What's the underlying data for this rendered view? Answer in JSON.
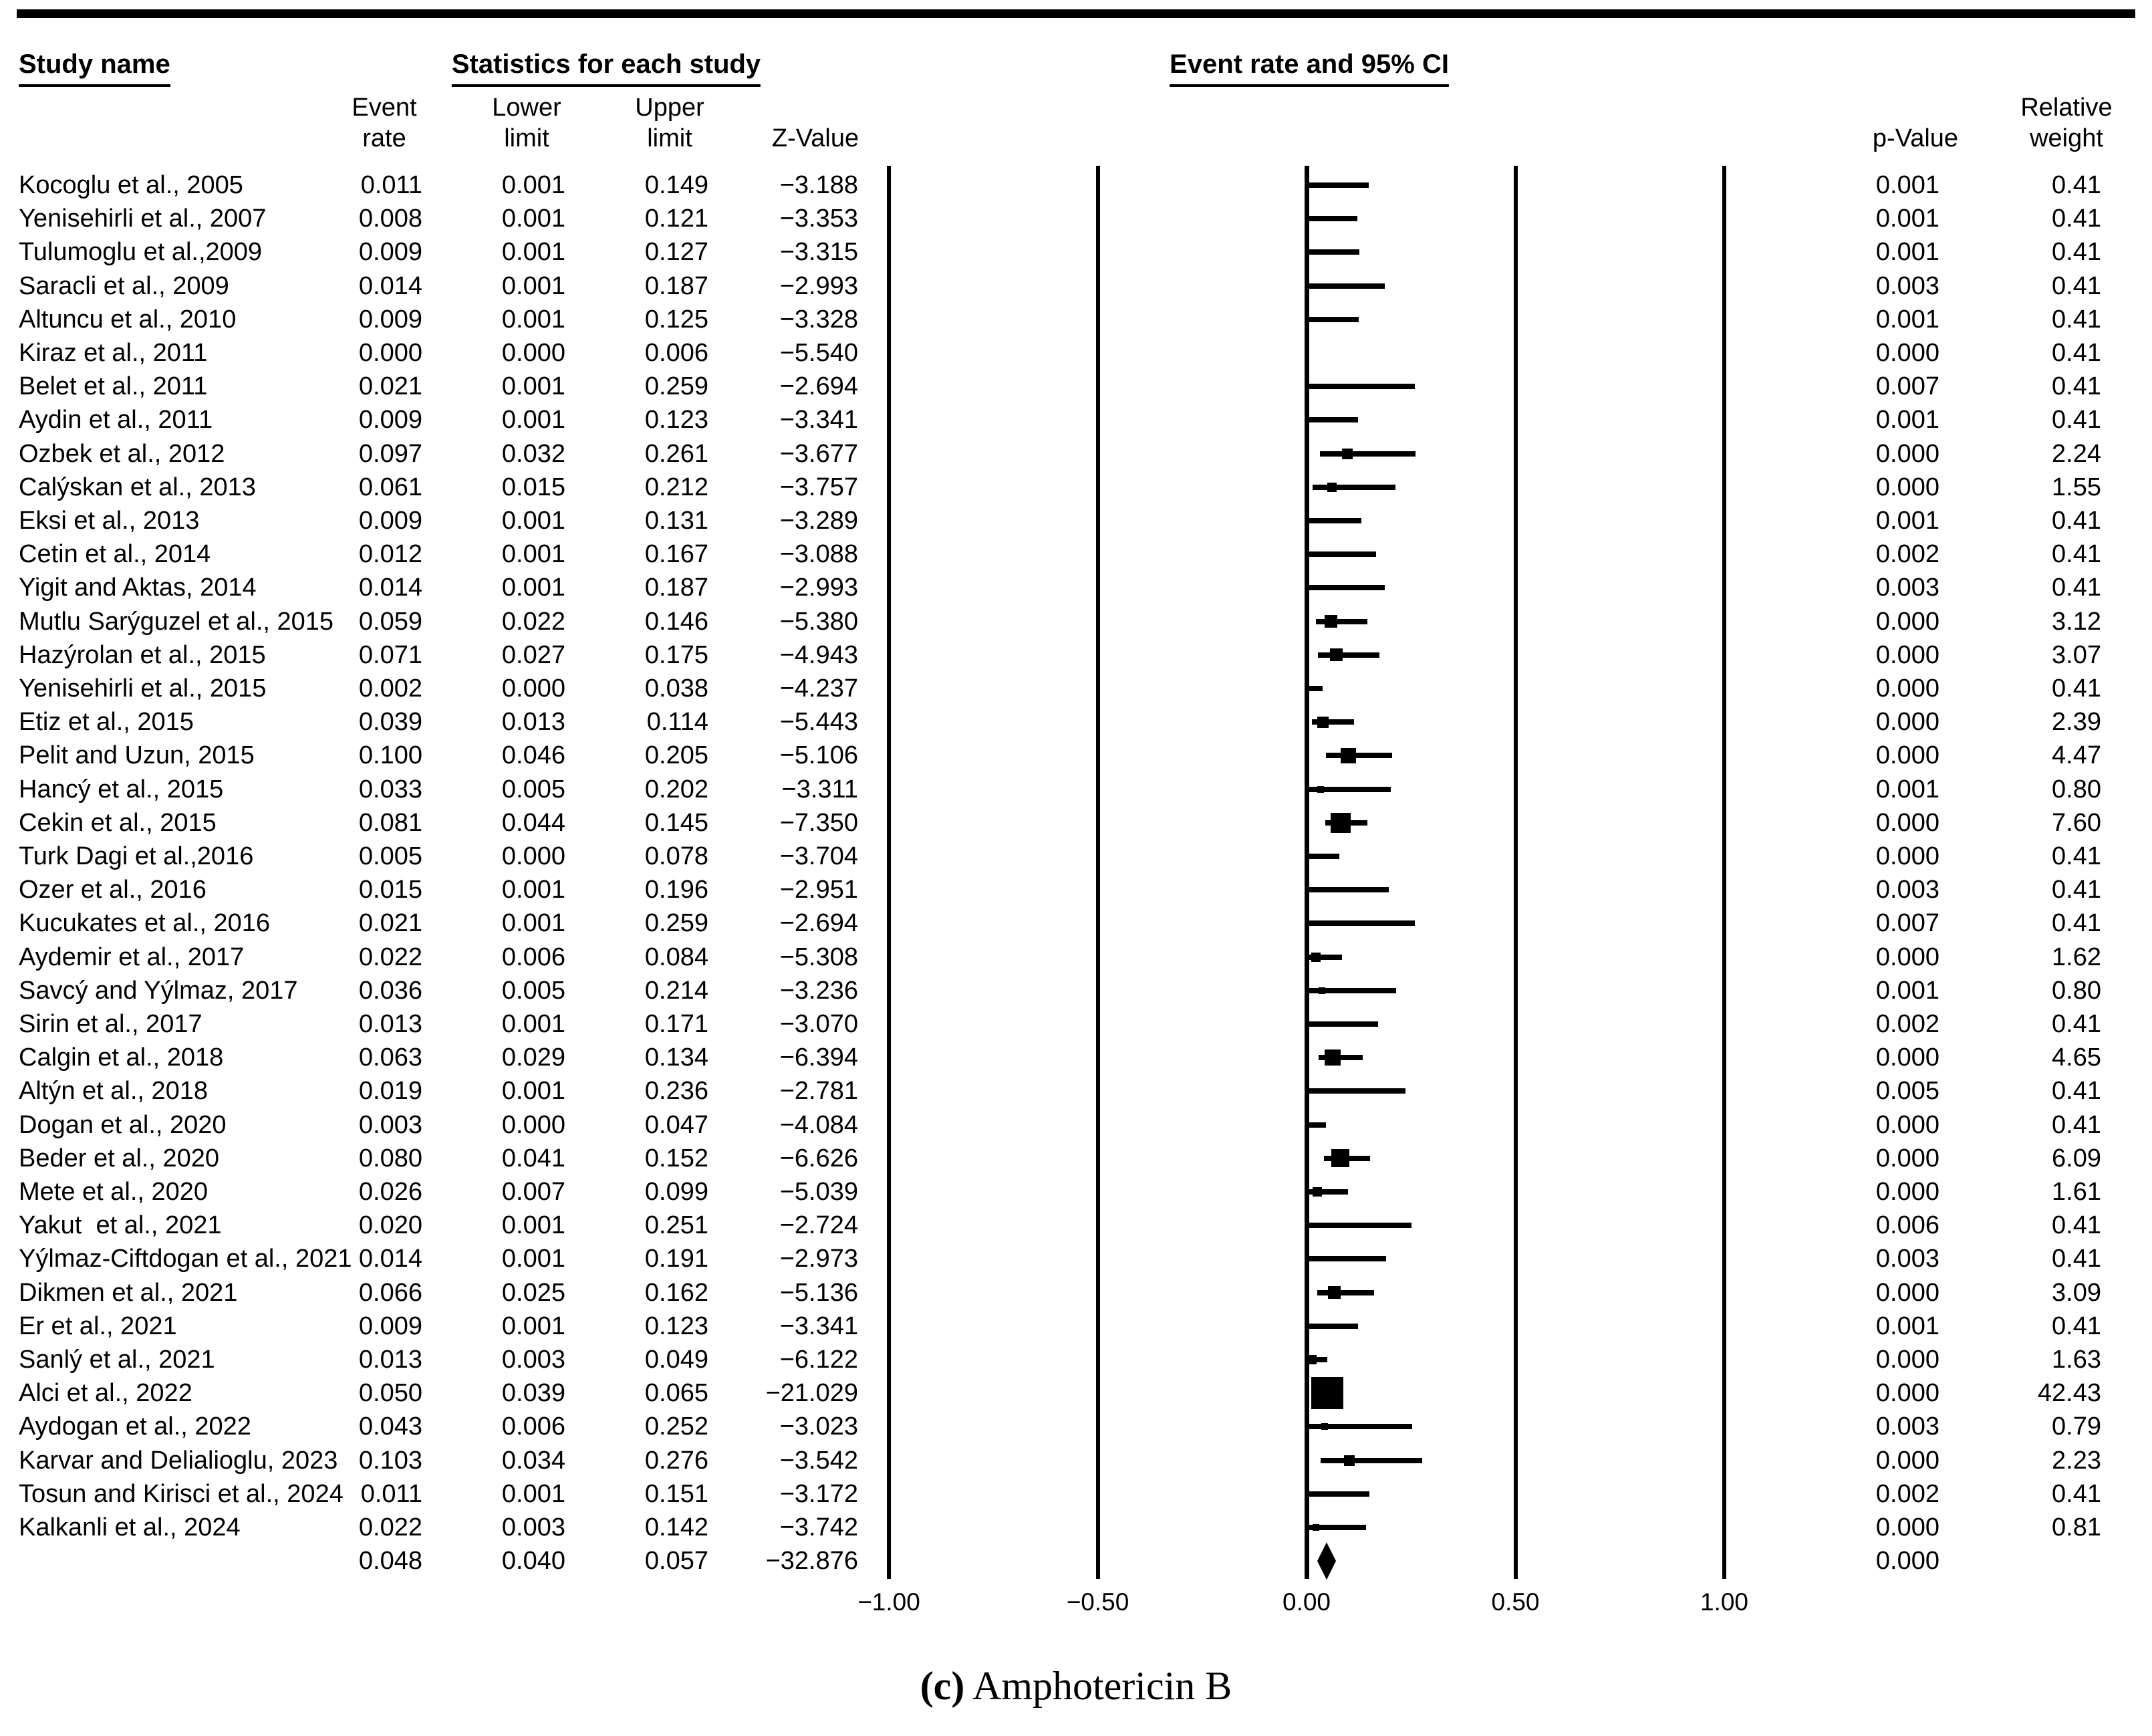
{
  "header": {
    "study_name": "Study name",
    "statistics": "Statistics for each study",
    "event_rate_ci": "Event rate and 95% CI"
  },
  "columns": {
    "event_rate": [
      "Event",
      "rate"
    ],
    "lower_limit": [
      "Lower",
      "limit"
    ],
    "upper_limit": [
      "Upper",
      "limit"
    ],
    "z_value": "Z-Value",
    "p_value": "p-Value",
    "relative_weight": [
      "Relative",
      "weight"
    ]
  },
  "caption": {
    "index": "(c)",
    "drug": "Amphotericin B"
  },
  "chart_data": {
    "type": "scatter",
    "subtype": "forest-plot-meta-analysis",
    "title": "(c) Amphotericin B",
    "xlabel": "",
    "xlim": [
      -1.0,
      1.0
    ],
    "x_tick_labels": [
      "−1.00",
      "−0.50",
      "0.00",
      "0.50",
      "1.00"
    ],
    "x_tick_values": [
      -1.0,
      -0.5,
      0.0,
      0.5,
      1.0
    ],
    "grid": "vertical reference lines at each x tick",
    "legend_position": "none",
    "studies": [
      {
        "name": "Kocoglu et al., 2005",
        "event_rate": "0.011",
        "lower_limit": "0.001",
        "upper_limit": "0.149",
        "z_value": "−3.188",
        "p_value": "0.001",
        "relative_weight": "0.41"
      },
      {
        "name": "Yenisehirli et al., 2007",
        "event_rate": "0.008",
        "lower_limit": "0.001",
        "upper_limit": "0.121",
        "z_value": "−3.353",
        "p_value": "0.001",
        "relative_weight": "0.41"
      },
      {
        "name": "Tulumoglu et al.,2009",
        "event_rate": "0.009",
        "lower_limit": "0.001",
        "upper_limit": "0.127",
        "z_value": "−3.315",
        "p_value": "0.001",
        "relative_weight": "0.41"
      },
      {
        "name": "Saracli et al., 2009",
        "event_rate": "0.014",
        "lower_limit": "0.001",
        "upper_limit": "0.187",
        "z_value": "−2.993",
        "p_value": "0.003",
        "relative_weight": "0.41"
      },
      {
        "name": "Altuncu et al., 2010",
        "event_rate": "0.009",
        "lower_limit": "0.001",
        "upper_limit": "0.125",
        "z_value": "−3.328",
        "p_value": "0.001",
        "relative_weight": "0.41"
      },
      {
        "name": "Kiraz et al., 2011",
        "event_rate": "0.000",
        "lower_limit": "0.000",
        "upper_limit": "0.006",
        "z_value": "−5.540",
        "p_value": "0.000",
        "relative_weight": "0.41"
      },
      {
        "name": "Belet et al., 2011",
        "event_rate": "0.021",
        "lower_limit": "0.001",
        "upper_limit": "0.259",
        "z_value": "−2.694",
        "p_value": "0.007",
        "relative_weight": "0.41"
      },
      {
        "name": "Aydin et al., 2011",
        "event_rate": "0.009",
        "lower_limit": "0.001",
        "upper_limit": "0.123",
        "z_value": "−3.341",
        "p_value": "0.001",
        "relative_weight": "0.41"
      },
      {
        "name": "Ozbek et al., 2012",
        "event_rate": "0.097",
        "lower_limit": "0.032",
        "upper_limit": "0.261",
        "z_value": "−3.677",
        "p_value": "0.000",
        "relative_weight": "2.24"
      },
      {
        "name": "Calýskan et al., 2013",
        "event_rate": "0.061",
        "lower_limit": "0.015",
        "upper_limit": "0.212",
        "z_value": "−3.757",
        "p_value": "0.000",
        "relative_weight": "1.55"
      },
      {
        "name": "Eksi et al., 2013",
        "event_rate": "0.009",
        "lower_limit": "0.001",
        "upper_limit": "0.131",
        "z_value": "−3.289",
        "p_value": "0.001",
        "relative_weight": "0.41"
      },
      {
        "name": "Cetin et al., 2014",
        "event_rate": "0.012",
        "lower_limit": "0.001",
        "upper_limit": "0.167",
        "z_value": "−3.088",
        "p_value": "0.002",
        "relative_weight": "0.41"
      },
      {
        "name": "Yigit and Aktas, 2014",
        "event_rate": "0.014",
        "lower_limit": "0.001",
        "upper_limit": "0.187",
        "z_value": "−2.993",
        "p_value": "0.003",
        "relative_weight": "0.41"
      },
      {
        "name": "Mutlu Sarýguzel et al., 2015",
        "event_rate": "0.059",
        "lower_limit": "0.022",
        "upper_limit": "0.146",
        "z_value": "−5.380",
        "p_value": "0.000",
        "relative_weight": "3.12"
      },
      {
        "name": "Hazýrolan et al., 2015",
        "event_rate": "0.071",
        "lower_limit": "0.027",
        "upper_limit": "0.175",
        "z_value": "−4.943",
        "p_value": "0.000",
        "relative_weight": "3.07"
      },
      {
        "name": "Yenisehirli et al., 2015",
        "event_rate": "0.002",
        "lower_limit": "0.000",
        "upper_limit": "0.038",
        "z_value": "−4.237",
        "p_value": "0.000",
        "relative_weight": "0.41"
      },
      {
        "name": "Etiz et al., 2015",
        "event_rate": "0.039",
        "lower_limit": "0.013",
        "upper_limit": "0.114",
        "z_value": "−5.443",
        "p_value": "0.000",
        "relative_weight": "2.39"
      },
      {
        "name": "Pelit and Uzun, 2015",
        "event_rate": "0.100",
        "lower_limit": "0.046",
        "upper_limit": "0.205",
        "z_value": "−5.106",
        "p_value": "0.000",
        "relative_weight": "4.47"
      },
      {
        "name": "Hancý et al., 2015",
        "event_rate": "0.033",
        "lower_limit": "0.005",
        "upper_limit": "0.202",
        "z_value": "−3.311",
        "p_value": "0.001",
        "relative_weight": "0.80"
      },
      {
        "name": "Cekin et al., 2015",
        "event_rate": "0.081",
        "lower_limit": "0.044",
        "upper_limit": "0.145",
        "z_value": "−7.350",
        "p_value": "0.000",
        "relative_weight": "7.60"
      },
      {
        "name": "Turk Dagi et al.,2016",
        "event_rate": "0.005",
        "lower_limit": "0.000",
        "upper_limit": "0.078",
        "z_value": "−3.704",
        "p_value": "0.000",
        "relative_weight": "0.41"
      },
      {
        "name": "Ozer et al., 2016",
        "event_rate": "0.015",
        "lower_limit": "0.001",
        "upper_limit": "0.196",
        "z_value": "−2.951",
        "p_value": "0.003",
        "relative_weight": "0.41"
      },
      {
        "name": "Kucukates et al., 2016",
        "event_rate": "0.021",
        "lower_limit": "0.001",
        "upper_limit": "0.259",
        "z_value": "−2.694",
        "p_value": "0.007",
        "relative_weight": "0.41"
      },
      {
        "name": "Aydemir et al., 2017",
        "event_rate": "0.022",
        "lower_limit": "0.006",
        "upper_limit": "0.084",
        "z_value": "−5.308",
        "p_value": "0.000",
        "relative_weight": "1.62"
      },
      {
        "name": "Savcý and Yýlmaz, 2017",
        "event_rate": "0.036",
        "lower_limit": "0.005",
        "upper_limit": "0.214",
        "z_value": "−3.236",
        "p_value": "0.001",
        "relative_weight": "0.80"
      },
      {
        "name": "Sirin et al., 2017",
        "event_rate": "0.013",
        "lower_limit": "0.001",
        "upper_limit": "0.171",
        "z_value": "−3.070",
        "p_value": "0.002",
        "relative_weight": "0.41"
      },
      {
        "name": "Calgin et al., 2018",
        "event_rate": "0.063",
        "lower_limit": "0.029",
        "upper_limit": "0.134",
        "z_value": "−6.394",
        "p_value": "0.000",
        "relative_weight": "4.65"
      },
      {
        "name": "Altýn et al., 2018",
        "event_rate": "0.019",
        "lower_limit": "0.001",
        "upper_limit": "0.236",
        "z_value": "−2.781",
        "p_value": "0.005",
        "relative_weight": "0.41"
      },
      {
        "name": "Dogan et al., 2020",
        "event_rate": "0.003",
        "lower_limit": "0.000",
        "upper_limit": "0.047",
        "z_value": "−4.084",
        "p_value": "0.000",
        "relative_weight": "0.41"
      },
      {
        "name": "Beder et al., 2020",
        "event_rate": "0.080",
        "lower_limit": "0.041",
        "upper_limit": "0.152",
        "z_value": "−6.626",
        "p_value": "0.000",
        "relative_weight": "6.09"
      },
      {
        "name": "Mete et al., 2020",
        "event_rate": "0.026",
        "lower_limit": "0.007",
        "upper_limit": "0.099",
        "z_value": "−5.039",
        "p_value": "0.000",
        "relative_weight": "1.61"
      },
      {
        "name": "Yakut  et al., 2021",
        "event_rate": "0.020",
        "lower_limit": "0.001",
        "upper_limit": "0.251",
        "z_value": "−2.724",
        "p_value": "0.006",
        "relative_weight": "0.41"
      },
      {
        "name": "Yýlmaz-Ciftdogan et al., 2021",
        "event_rate": "0.014",
        "lower_limit": "0.001",
        "upper_limit": "0.191",
        "z_value": "−2.973",
        "p_value": "0.003",
        "relative_weight": "0.41"
      },
      {
        "name": "Dikmen et al., 2021",
        "event_rate": "0.066",
        "lower_limit": "0.025",
        "upper_limit": "0.162",
        "z_value": "−5.136",
        "p_value": "0.000",
        "relative_weight": "3.09"
      },
      {
        "name": "Er et al., 2021",
        "event_rate": "0.009",
        "lower_limit": "0.001",
        "upper_limit": "0.123",
        "z_value": "−3.341",
        "p_value": "0.001",
        "relative_weight": "0.41"
      },
      {
        "name": "Sanlý et al., 2021",
        "event_rate": "0.013",
        "lower_limit": "0.003",
        "upper_limit": "0.049",
        "z_value": "−6.122",
        "p_value": "0.000",
        "relative_weight": "1.63"
      },
      {
        "name": "Alci et al., 2022",
        "event_rate": "0.050",
        "lower_limit": "0.039",
        "upper_limit": "0.065",
        "z_value": "−21.029",
        "p_value": "0.000",
        "relative_weight": "42.43"
      },
      {
        "name": "Aydogan et al., 2022",
        "event_rate": "0.043",
        "lower_limit": "0.006",
        "upper_limit": "0.252",
        "z_value": "−3.023",
        "p_value": "0.003",
        "relative_weight": "0.79"
      },
      {
        "name": "Karvar and Delialioglu, 2023",
        "event_rate": "0.103",
        "lower_limit": "0.034",
        "upper_limit": "0.276",
        "z_value": "−3.542",
        "p_value": "0.000",
        "relative_weight": "2.23"
      },
      {
        "name": "Tosun and Kirisci et al., 2024",
        "event_rate": "0.011",
        "lower_limit": "0.001",
        "upper_limit": "0.151",
        "z_value": "−3.172",
        "p_value": "0.002",
        "relative_weight": "0.41"
      },
      {
        "name": "Kalkanli et al., 2024",
        "event_rate": "0.022",
        "lower_limit": "0.003",
        "upper_limit": "0.142",
        "z_value": "−3.742",
        "p_value": "0.000",
        "relative_weight": "0.81"
      }
    ],
    "summary": {
      "name": "",
      "event_rate": "0.048",
      "lower_limit": "0.040",
      "upper_limit": "0.057",
      "z_value": "−32.876",
      "p_value": "0.000",
      "relative_weight": ""
    }
  }
}
